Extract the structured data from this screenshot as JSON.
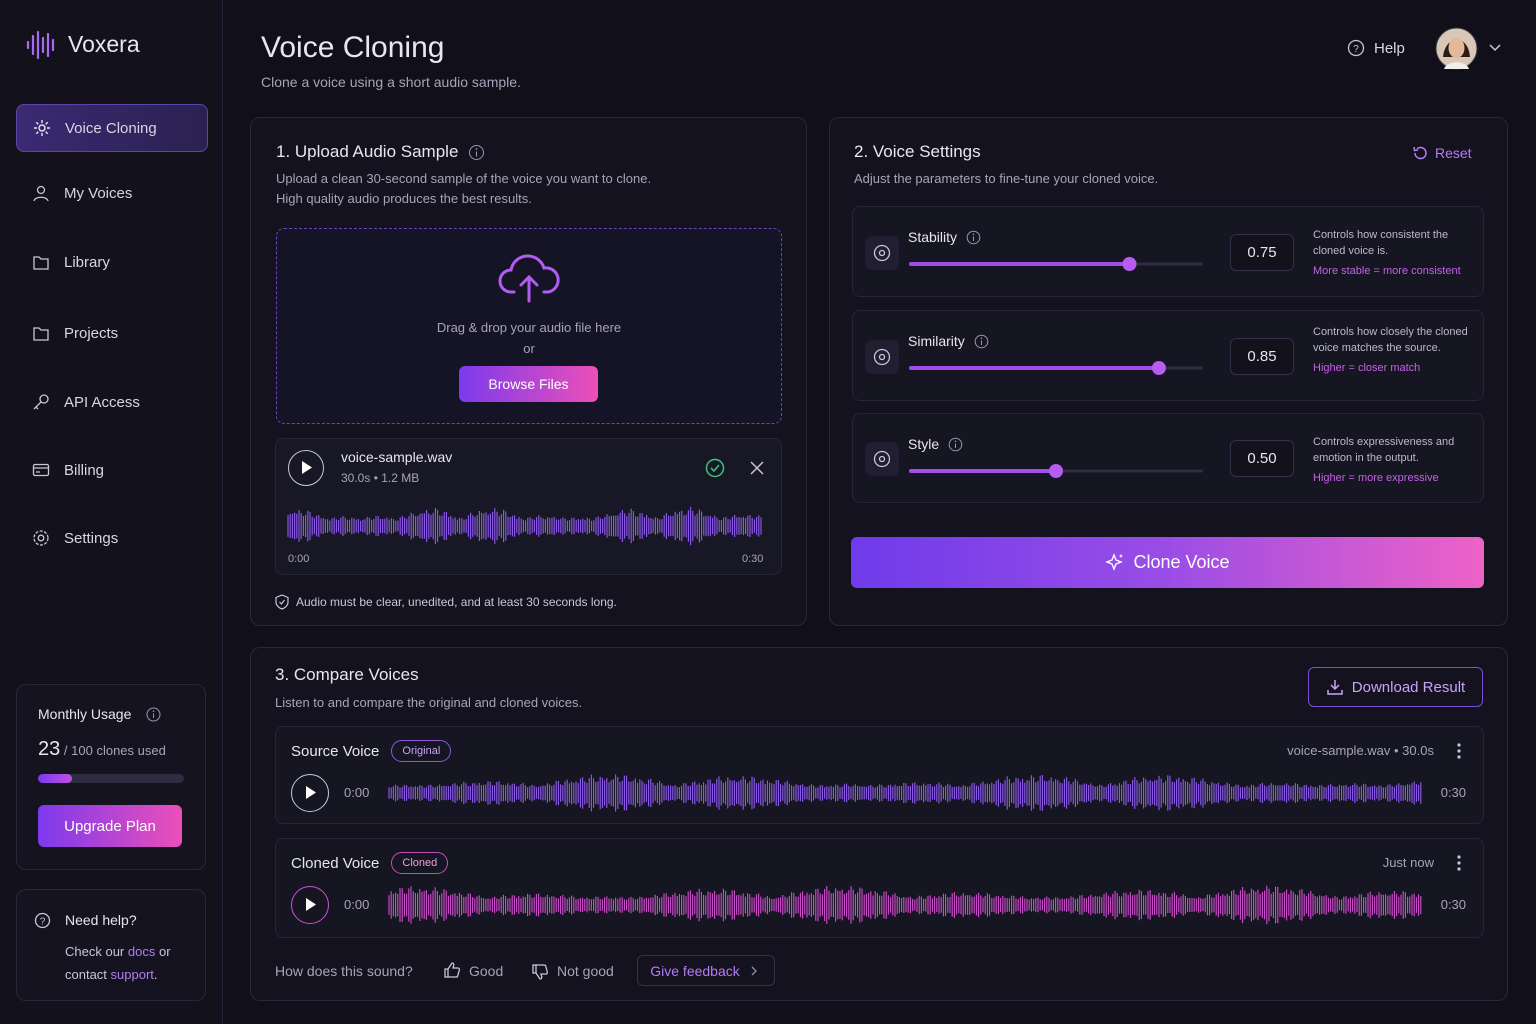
{
  "sidebar": {
    "brand": "Voxera",
    "nav": [
      "Voice Cloning",
      "My Voices",
      "Library",
      "Projects",
      "API Access",
      "Billing",
      "Settings"
    ],
    "usage": {
      "title": "Monthly Usage",
      "used": 23,
      "separator": "/",
      "limit": 100,
      "unit": "clones used",
      "button": "Upgrade Plan"
    },
    "help": {
      "title": "Need help?",
      "parts": [
        "Check our",
        "docs",
        "or contact",
        "support",
        "."
      ]
    }
  },
  "header": {
    "title": "Voice Cloning",
    "subtitle": "Clone a voice using a short audio sample.",
    "help": "Help"
  },
  "upload": {
    "title": "1. Upload Audio Sample",
    "description": [
      "Upload a clean 30-second sample of the voice you want to clone.",
      "High quality audio produces the best results."
    ],
    "drop_text": "Drag & drop your audio file here",
    "or": "or",
    "button": "Browse Files",
    "file": {
      "name": "voice-sample.wav",
      "meta": "30.0s • 1.2 MB",
      "start": "0:00",
      "end": "0:30"
    },
    "note": "Audio must be clear, unedited, and at least 30 seconds long."
  },
  "settings": {
    "title": "2. Voice Settings",
    "reset": "Reset",
    "description": "Adjust the parameters to fine-tune your cloned voice.",
    "items": [
      {
        "label": "Stability",
        "value": 0.75,
        "description": "Controls how consistent the cloned voice is.",
        "hint": "More stable = more consistent"
      },
      {
        "label": "Similarity",
        "value": 0.85,
        "description": "Controls how closely the cloned voice matches the source.",
        "hint": "Higher = closer match"
      },
      {
        "label": "Style",
        "value": {
          "value": 0.5,
          "label": "0.50"
        },
        "description": "Controls expressiveness and emotion in the output.",
        "hint": "Higher = more expressive"
      }
    ],
    "button": "Clone Voice"
  },
  "compare": {
    "title": "3. Compare Voices",
    "description": "Listen to and compare the original and cloned voices.",
    "download": "Download Result",
    "rows": [
      {
        "label": "Source Voice",
        "badge": "Original",
        "meta": "voice-sample.wav • 30.0s",
        "start": "0:00",
        "end": "0:30"
      },
      {
        "label": "Cloned Voice",
        "badge": "Cloned",
        "meta": "Just now",
        "start": "0:00",
        "end": "0:30"
      }
    ],
    "feedback": {
      "question": "How does this sound?",
      "good": "Good",
      "bad": "Not good",
      "give": "Give feedback"
    }
  }
}
